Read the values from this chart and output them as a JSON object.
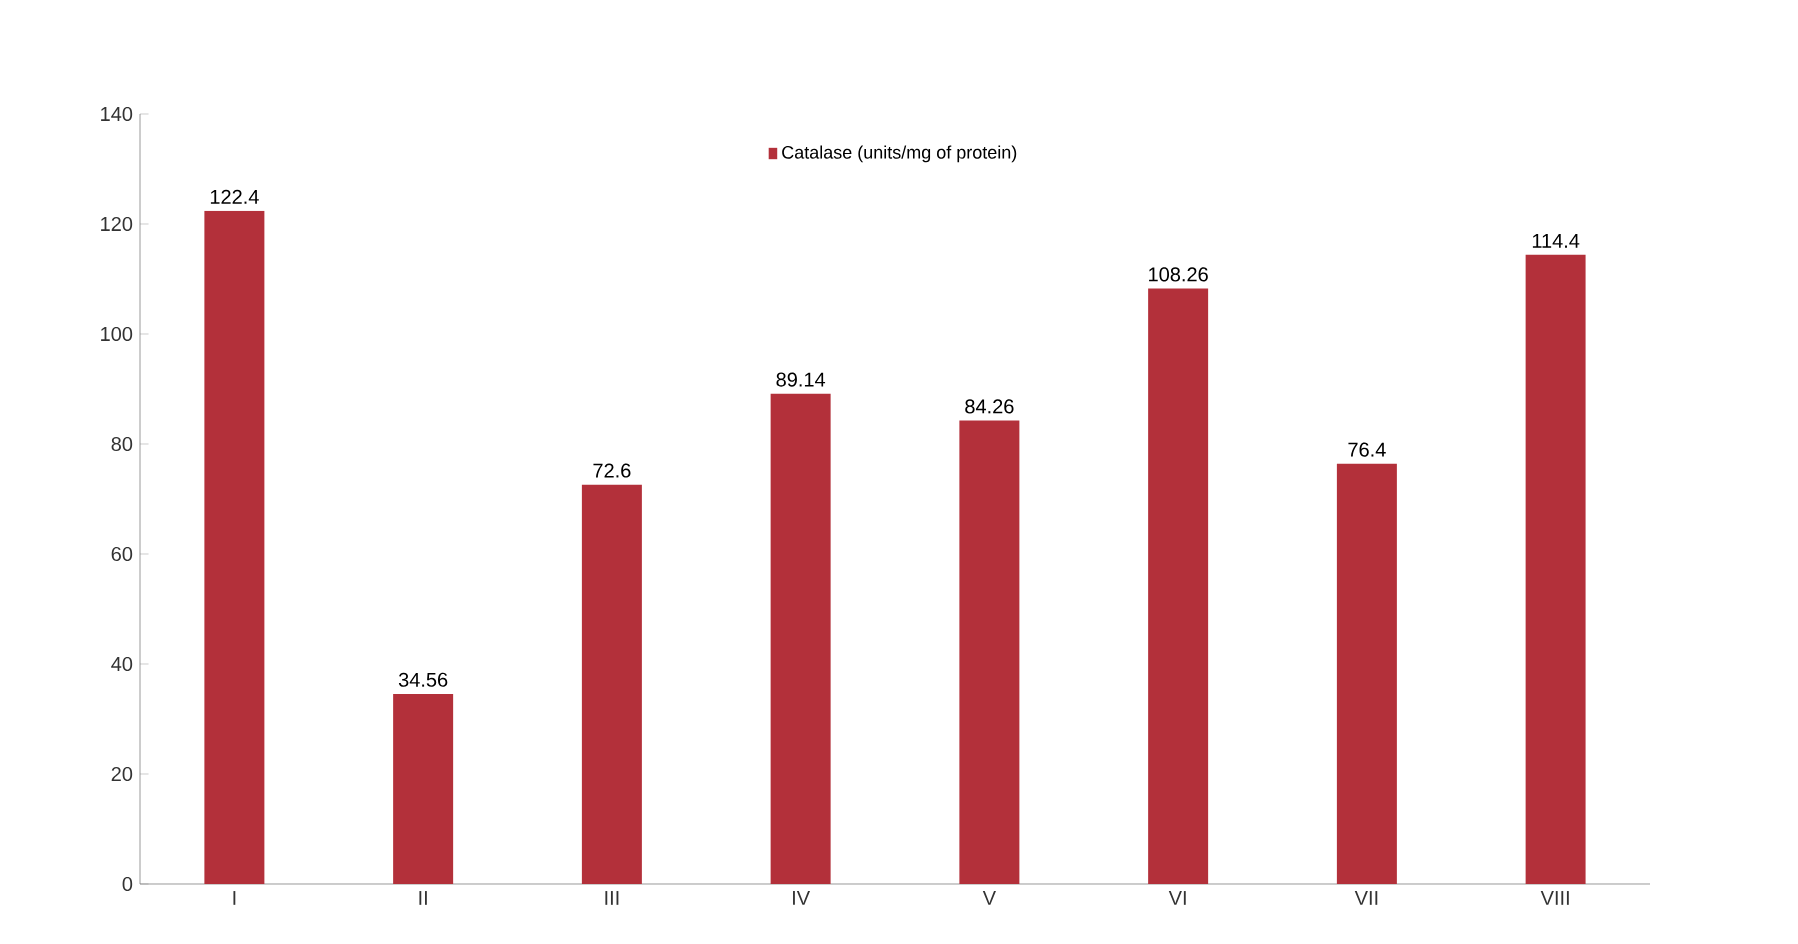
{
  "chart_data": {
    "type": "bar",
    "categories": [
      "I",
      "II",
      "III",
      "IV",
      "V",
      "VI",
      "VII",
      "VIII"
    ],
    "series": [
      {
        "name": "Catalase (units/mg of protein)",
        "color": "#b3303a",
        "values": [
          122.4,
          34.56,
          72.6,
          89.14,
          84.26,
          108.26,
          76.4,
          114.4
        ]
      }
    ],
    "ylim": [
      0,
      140
    ],
    "yticks": [
      0,
      20,
      40,
      60,
      80,
      100,
      120,
      140
    ],
    "data_labels": true,
    "legend": "top",
    "grid": false
  }
}
